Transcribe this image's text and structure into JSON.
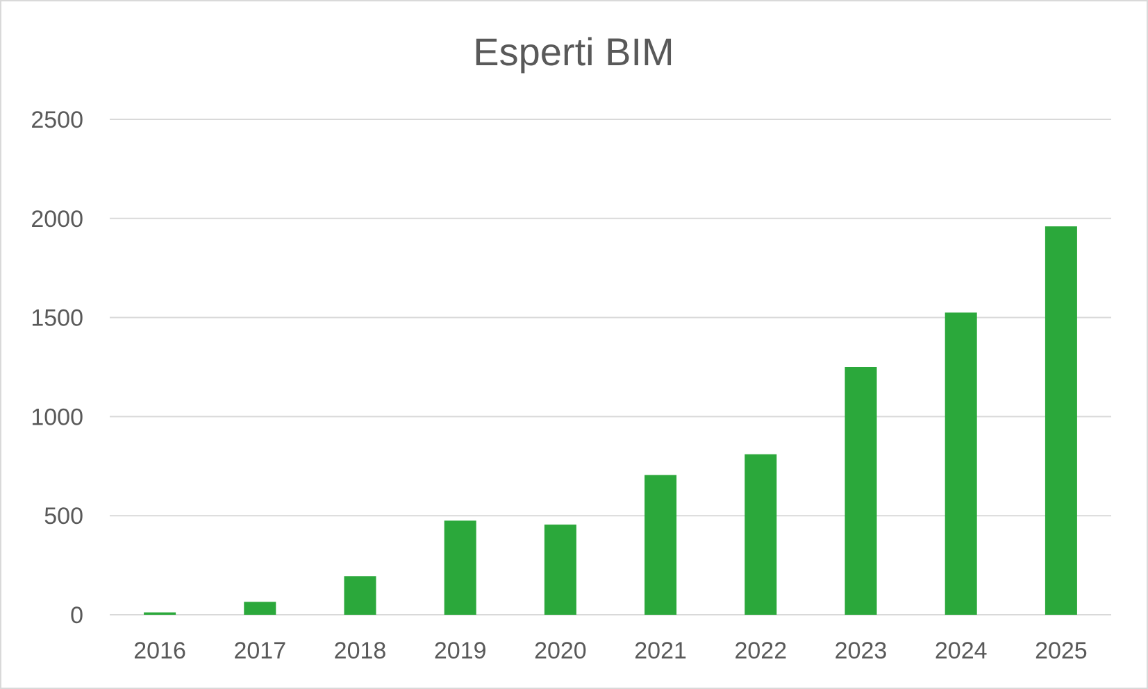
{
  "chart_data": {
    "type": "bar",
    "title": "Esperti BIM",
    "xlabel": "",
    "ylabel": "",
    "categories": [
      "2016",
      "2017",
      "2018",
      "2019",
      "2020",
      "2021",
      "2022",
      "2023",
      "2024",
      "2025"
    ],
    "series": [
      {
        "values": [
          12,
          65,
          195,
          475,
          455,
          705,
          810,
          1250,
          1525,
          1960
        ],
        "color": "#2ba83b"
      }
    ],
    "ylim": [
      0,
      2500
    ],
    "yticks": [
      "0",
      "500",
      "1000",
      "1500",
      "2000",
      "2500"
    ],
    "grid": true,
    "legend": "none",
    "colors": {
      "bar": "#2ba83b",
      "grid": "#d9d9d9",
      "text": "#595959",
      "border": "#d9d9d9"
    }
  }
}
